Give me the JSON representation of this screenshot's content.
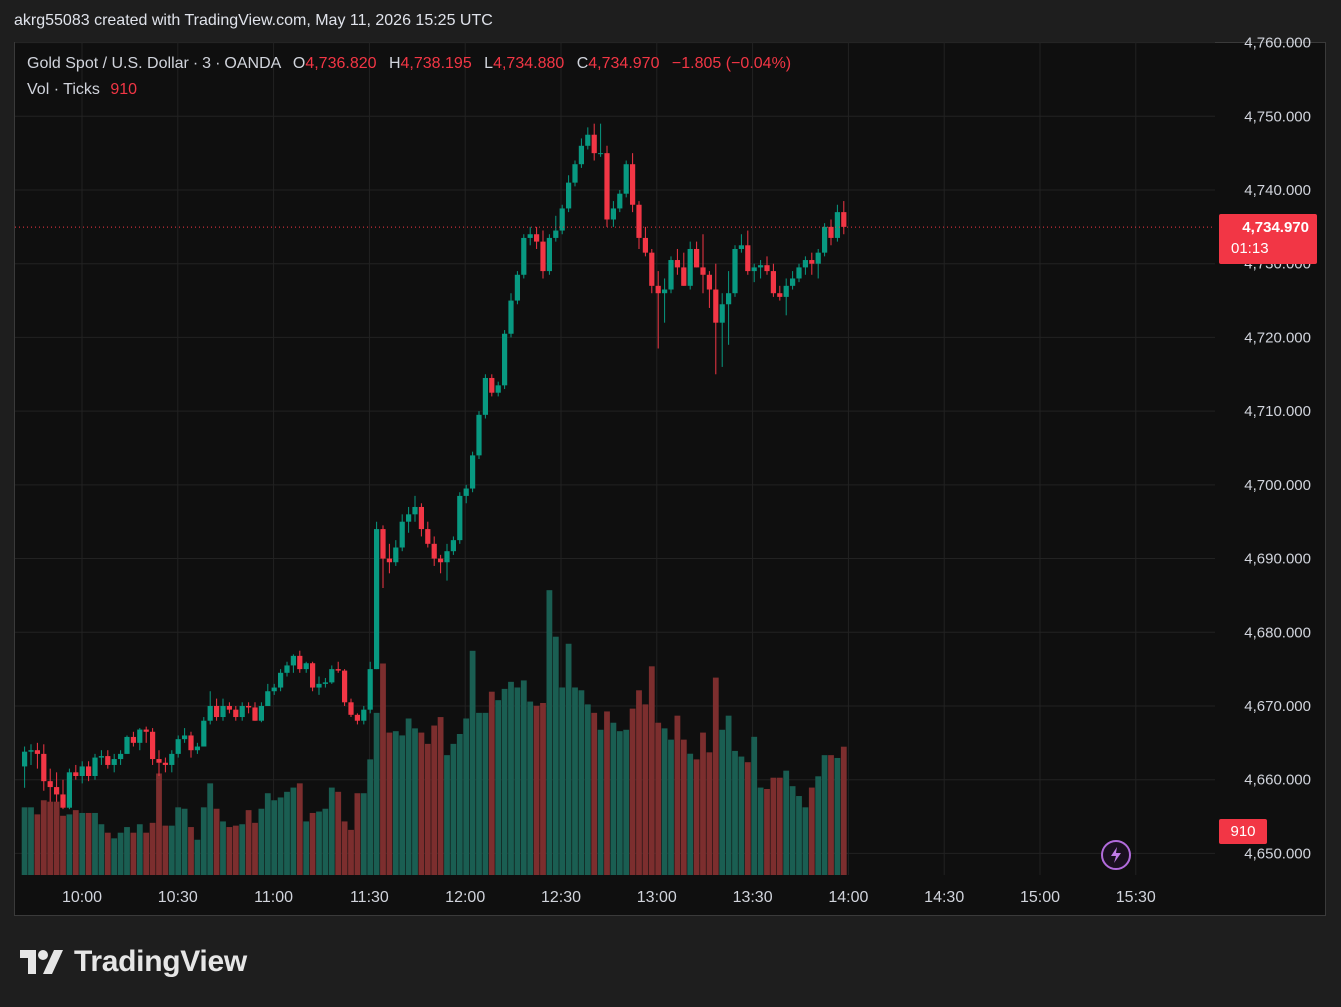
{
  "header": {
    "created_line": "akrg55083 created with TradingView.com, May 11, 2026 15:25 UTC"
  },
  "legend": {
    "symbol": "Gold Spot / U.S. Dollar",
    "interval": "3",
    "source": "OANDA",
    "open_label": "O",
    "open": "4,736.820",
    "high_label": "H",
    "high": "4,738.195",
    "low_label": "L",
    "low": "4,734.880",
    "close_label": "C",
    "close": "4,734.970",
    "change": "−1.805 (−0.04%)",
    "vol_label": "Vol · Ticks",
    "vol_value": "910"
  },
  "price_badge": {
    "price": "4,734.970",
    "countdown": "01:13"
  },
  "volume_badge": "910",
  "brand": "TradingView",
  "colors": {
    "up": "#089981",
    "down": "#f23645",
    "vol_up": "#1a5e52",
    "vol_down": "#7c2e2e",
    "bg": "#0f0f0f"
  },
  "chart_data": {
    "type": "candlestick",
    "interval_minutes": 3,
    "ylim": [
      4648,
      4761
    ],
    "y_ticks": [
      "4,650.000",
      "4,660.000",
      "4,670.000",
      "4,680.000",
      "4,690.000",
      "4,700.000",
      "4,710.000",
      "4,720.000",
      "4,730.000",
      "4,740.000",
      "4,750.000",
      "4,760.000"
    ],
    "y_tick_values": [
      4650,
      4660,
      4670,
      4680,
      4690,
      4700,
      4710,
      4720,
      4730,
      4740,
      4750,
      4760
    ],
    "x_ticks": [
      "10:00",
      "10:30",
      "11:00",
      "11:30",
      "12:00",
      "12:30",
      "13:00",
      "13:30",
      "14:00",
      "14:30",
      "15:00",
      "15:30"
    ],
    "last_price": 4734.97,
    "volume_ylim": [
      0,
      900
    ],
    "candles": [
      [
        4661.8,
        4664.5,
        4658.9,
        4663.8,
        480
      ],
      [
        4663.8,
        4664.8,
        4662.0,
        4664.0,
        480
      ],
      [
        4664.0,
        4665.0,
        4661.5,
        4663.5,
        430
      ],
      [
        4663.5,
        4664.8,
        4658.5,
        4659.8,
        530
      ],
      [
        4659.8,
        4661.5,
        4657.0,
        4659.0,
        520
      ],
      [
        4659.0,
        4661.0,
        4657.0,
        4658.0,
        520
      ],
      [
        4658.0,
        4660.0,
        4656.0,
        4656.2,
        420
      ],
      [
        4656.2,
        4661.5,
        4656.0,
        4661.0,
        430
      ],
      [
        4661.0,
        4662.0,
        4660.0,
        4660.5,
        460
      ],
      [
        4660.5,
        4662.5,
        4659.5,
        4661.8,
        440
      ],
      [
        4661.8,
        4662.5,
        4659.8,
        4660.5,
        440
      ],
      [
        4660.5,
        4663.5,
        4660.0,
        4663.0,
        440
      ],
      [
        4663.0,
        4664.0,
        4662.0,
        4663.2,
        360
      ],
      [
        4663.2,
        4664.0,
        4661.5,
        4662.0,
        300
      ],
      [
        4662.0,
        4663.5,
        4661.0,
        4662.8,
        260
      ],
      [
        4662.8,
        4664.0,
        4662.0,
        4663.5,
        300
      ],
      [
        4663.5,
        4666.0,
        4663.5,
        4665.8,
        340
      ],
      [
        4665.8,
        4666.5,
        4664.5,
        4665.0,
        300
      ],
      [
        4665.0,
        4667.0,
        4664.0,
        4666.8,
        360
      ],
      [
        4666.8,
        4667.2,
        4665.0,
        4666.5,
        300
      ],
      [
        4666.5,
        4667.0,
        4662.0,
        4662.8,
        370
      ],
      [
        4662.8,
        4664.0,
        4660.5,
        4662.3,
        720
      ],
      [
        4662.3,
        4663.0,
        4661.0,
        4662.0,
        350
      ],
      [
        4662.0,
        4664.0,
        4661.0,
        4663.5,
        350
      ],
      [
        4663.5,
        4666.0,
        4663.0,
        4665.5,
        480
      ],
      [
        4665.5,
        4667.0,
        4665.0,
        4666.0,
        470
      ],
      [
        4666.0,
        4666.5,
        4663.0,
        4664.0,
        340
      ],
      [
        4664.0,
        4665.0,
        4663.5,
        4664.5,
        250
      ],
      [
        4664.5,
        4668.5,
        4664.5,
        4668.0,
        480
      ],
      [
        4668.0,
        4672.0,
        4667.5,
        4670.0,
        650
      ],
      [
        4670.0,
        4671.0,
        4668.0,
        4668.5,
        470
      ],
      [
        4668.5,
        4671.0,
        4668.0,
        4670.0,
        380
      ],
      [
        4670.0,
        4670.5,
        4669.0,
        4669.5,
        340
      ],
      [
        4669.5,
        4670.0,
        4668.0,
        4668.5,
        350
      ],
      [
        4668.5,
        4670.5,
        4668.0,
        4670.0,
        360
      ],
      [
        4670.0,
        4670.5,
        4669.0,
        4669.8,
        460
      ],
      [
        4669.8,
        4670.5,
        4668.0,
        4668.0,
        370
      ],
      [
        4668.0,
        4670.5,
        4667.8,
        4670.0,
        470
      ],
      [
        4670.0,
        4673.0,
        4670.0,
        4672.0,
        580
      ],
      [
        4672.0,
        4673.0,
        4671.5,
        4672.5,
        530
      ],
      [
        4672.5,
        4675.0,
        4672.0,
        4674.5,
        550
      ],
      [
        4674.5,
        4676.0,
        4674.0,
        4675.5,
        590
      ],
      [
        4675.5,
        4677.0,
        4674.5,
        4676.8,
        620
      ],
      [
        4676.8,
        4677.5,
        4674.5,
        4675.0,
        650
      ],
      [
        4675.0,
        4676.0,
        4674.5,
        4675.8,
        380
      ],
      [
        4675.8,
        4676.0,
        4672.0,
        4672.5,
        440
      ],
      [
        4672.5,
        4674.0,
        4671.5,
        4673.0,
        450
      ],
      [
        4673.0,
        4673.8,
        4672.5,
        4673.2,
        470
      ],
      [
        4673.2,
        4675.5,
        4673.0,
        4675.0,
        620
      ],
      [
        4675.0,
        4676.0,
        4674.5,
        4674.8,
        590
      ],
      [
        4674.8,
        4675.0,
        4670.0,
        4670.5,
        380
      ],
      [
        4670.5,
        4671.0,
        4668.5,
        4668.8,
        320
      ],
      [
        4668.8,
        4669.0,
        4667.5,
        4668.0,
        580
      ],
      [
        4668.0,
        4670.0,
        4667.5,
        4669.5,
        580
      ],
      [
        4669.5,
        4676.0,
        4669.0,
        4675.0,
        820
      ],
      [
        4675.0,
        4695.0,
        4675.0,
        4694.0,
        1150
      ],
      [
        4694.0,
        4694.5,
        4686.0,
        4690.0,
        1500
      ],
      [
        4690.0,
        4692.0,
        4688.0,
        4689.5,
        1010
      ],
      [
        4689.5,
        4692.5,
        4689.0,
        4691.5,
        1020
      ],
      [
        4691.5,
        4696.0,
        4691.0,
        4695.0,
        990
      ],
      [
        4695.0,
        4697.0,
        4693.5,
        4696.0,
        1110
      ],
      [
        4696.0,
        4698.5,
        4695.0,
        4697.0,
        1040
      ],
      [
        4697.0,
        4697.5,
        4693.0,
        4694.0,
        1010
      ],
      [
        4694.0,
        4695.0,
        4691.5,
        4692.0,
        930
      ],
      [
        4692.0,
        4693.0,
        4689.0,
        4690.0,
        1060
      ],
      [
        4690.0,
        4690.5,
        4688.0,
        4689.5,
        1120
      ],
      [
        4689.5,
        4692.0,
        4687.0,
        4691.0,
        850
      ],
      [
        4691.0,
        4693.0,
        4690.5,
        4692.5,
        930
      ],
      [
        4692.5,
        4699.0,
        4692.0,
        4698.5,
        1000
      ],
      [
        4698.5,
        4700.0,
        4697.5,
        4699.5,
        1110
      ],
      [
        4699.5,
        4704.5,
        4699.0,
        4704.0,
        1590
      ],
      [
        4704.0,
        4710.0,
        4703.5,
        4709.5,
        1150
      ],
      [
        4709.5,
        4715.0,
        4709.0,
        4714.5,
        1150
      ],
      [
        4714.5,
        4715.0,
        4712.0,
        4712.5,
        1300
      ],
      [
        4712.5,
        4714.0,
        4712.0,
        4713.5,
        1240
      ],
      [
        4713.5,
        4721.0,
        4713.0,
        4720.5,
        1320
      ],
      [
        4720.5,
        4726.0,
        4720.0,
        4725.0,
        1370
      ],
      [
        4725.0,
        4729.0,
        4724.5,
        4728.5,
        1330
      ],
      [
        4728.5,
        4734.0,
        4728.0,
        4733.5,
        1380
      ],
      [
        4733.5,
        4735.0,
        4732.5,
        4734.0,
        1230
      ],
      [
        4734.0,
        4735.0,
        4732.0,
        4733.0,
        1200
      ],
      [
        4733.0,
        4734.5,
        4728.0,
        4729.0,
        1220
      ],
      [
        4729.0,
        4734.0,
        4728.5,
        4733.5,
        2020
      ],
      [
        4733.5,
        4736.5,
        4733.0,
        4734.5,
        1690
      ],
      [
        4734.5,
        4738.0,
        4734.0,
        4737.5,
        1330
      ],
      [
        4737.5,
        4742.0,
        4737.0,
        4741.0,
        1640
      ],
      [
        4741.0,
        4744.0,
        4740.5,
        4743.5,
        1330
      ],
      [
        4743.5,
        4747.0,
        4743.0,
        4746.0,
        1310
      ],
      [
        4746.0,
        4748.5,
        4745.5,
        4747.5,
        1210
      ],
      [
        4747.5,
        4749.0,
        4744.0,
        4745.0,
        1150
      ],
      [
        4745.0,
        4749.0,
        4744.5,
        4745.0,
        1030
      ],
      [
        4745.0,
        4746.0,
        4735.0,
        4736.0,
        1160
      ],
      [
        4736.0,
        4738.5,
        4735.0,
        4737.5,
        1080
      ],
      [
        4737.5,
        4740.0,
        4737.0,
        4739.5,
        1020
      ],
      [
        4739.5,
        4744.0,
        4739.0,
        4743.5,
        1030
      ],
      [
        4743.5,
        4745.0,
        4737.0,
        4738.0,
        1180
      ],
      [
        4738.0,
        4738.5,
        4732.0,
        4733.5,
        1310
      ],
      [
        4733.5,
        4735.0,
        4731.0,
        4731.5,
        1210
      ],
      [
        4731.5,
        4732.0,
        4726.0,
        4727.0,
        1480
      ],
      [
        4727.0,
        4729.0,
        4718.5,
        4726.0,
        1080
      ],
      [
        4726.0,
        4728.0,
        4722.0,
        4726.5,
        1040
      ],
      [
        4726.5,
        4731.0,
        4726.0,
        4730.5,
        960
      ],
      [
        4730.5,
        4732.0,
        4728.5,
        4729.5,
        1130
      ],
      [
        4729.5,
        4731.5,
        4727.0,
        4727.0,
        960
      ],
      [
        4727.0,
        4733.0,
        4726.5,
        4732.0,
        860
      ],
      [
        4732.0,
        4733.0,
        4729.5,
        4729.5,
        820
      ],
      [
        4729.5,
        4734.0,
        4726.0,
        4728.5,
        1010
      ],
      [
        4728.5,
        4729.0,
        4724.0,
        4726.5,
        870
      ],
      [
        4726.5,
        4730.0,
        4715.0,
        4722.0,
        1400
      ],
      [
        4722.0,
        4726.0,
        4716.0,
        4724.5,
        1030
      ],
      [
        4724.5,
        4729.0,
        4719.0,
        4726.0,
        1130
      ],
      [
        4726.0,
        4732.5,
        4725.5,
        4732.0,
        880
      ],
      [
        4732.0,
        4734.0,
        4731.5,
        4732.5,
        840
      ],
      [
        4732.5,
        4734.5,
        4728.5,
        4729.0,
        800
      ],
      [
        4729.0,
        4730.0,
        4727.5,
        4729.5,
        980
      ],
      [
        4729.5,
        4730.5,
        4728.0,
        4729.8,
        620
      ],
      [
        4729.8,
        4731.0,
        4728.5,
        4729.0,
        610
      ],
      [
        4729.0,
        4730.0,
        4725.5,
        4726.0,
        690
      ],
      [
        4726.0,
        4727.0,
        4725.0,
        4725.5,
        690
      ],
      [
        4725.5,
        4728.0,
        4723.0,
        4727.0,
        740
      ],
      [
        4727.0,
        4729.0,
        4726.5,
        4728.0,
        630
      ],
      [
        4728.0,
        4730.0,
        4727.5,
        4729.5,
        560
      ],
      [
        4729.5,
        4731.0,
        4728.5,
        4730.5,
        480
      ],
      [
        4730.5,
        4731.5,
        4728.5,
        4730.0,
        620
      ],
      [
        4730.0,
        4732.0,
        4728.0,
        4731.5,
        700
      ],
      [
        4731.5,
        4735.5,
        4731.0,
        4735.0,
        850
      ],
      [
        4735.0,
        4736.0,
        4732.5,
        4733.5,
        850
      ],
      [
        4733.5,
        4738.0,
        4733.0,
        4737.0,
        830
      ],
      [
        4737.0,
        4738.5,
        4734.0,
        4735.0,
        910
      ]
    ]
  }
}
